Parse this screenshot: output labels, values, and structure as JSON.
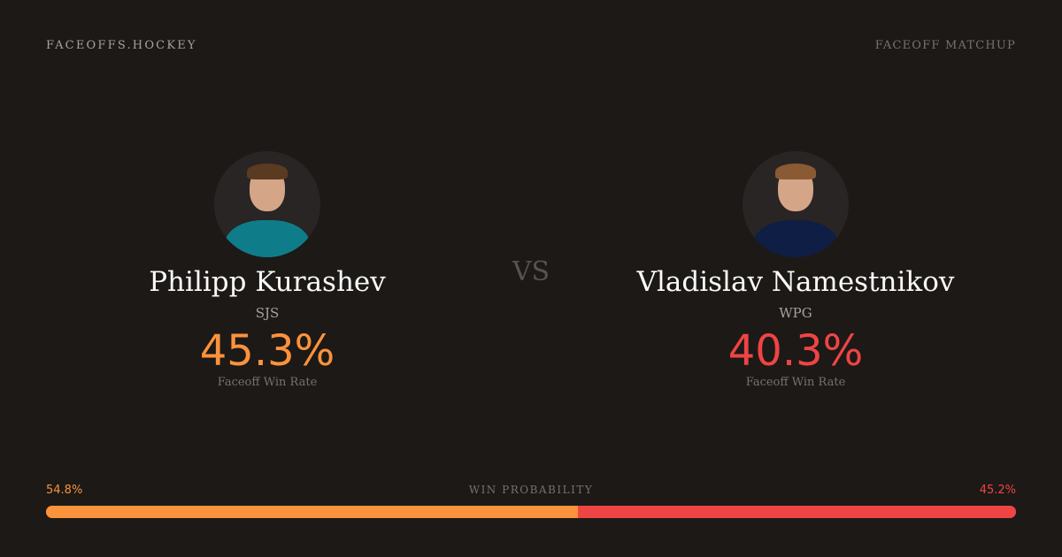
{
  "header": {
    "brand": "FACEOFFS.HOCKEY",
    "tag": "FACEOFF MATCHUP"
  },
  "vs": "VS",
  "players": [
    {
      "name": "Philipp Kurashev",
      "team": "SJS",
      "win_rate": "45.3%",
      "win_rate_label": "Faceoff Win Rate",
      "color": "#fb923c",
      "jersey": "#0f7c8a",
      "hair": "#5b3a22"
    },
    {
      "name": "Vladislav Namestnikov",
      "team": "WPG",
      "win_rate": "40.3%",
      "win_rate_label": "Faceoff Win Rate",
      "color": "#ef4444",
      "jersey": "#0f1e45",
      "hair": "#8a5a34"
    }
  ],
  "win_probability": {
    "label": "WIN PROBABILITY",
    "left": "54.8%",
    "right": "45.2%",
    "left_value": 54.8,
    "right_value": 45.2
  }
}
